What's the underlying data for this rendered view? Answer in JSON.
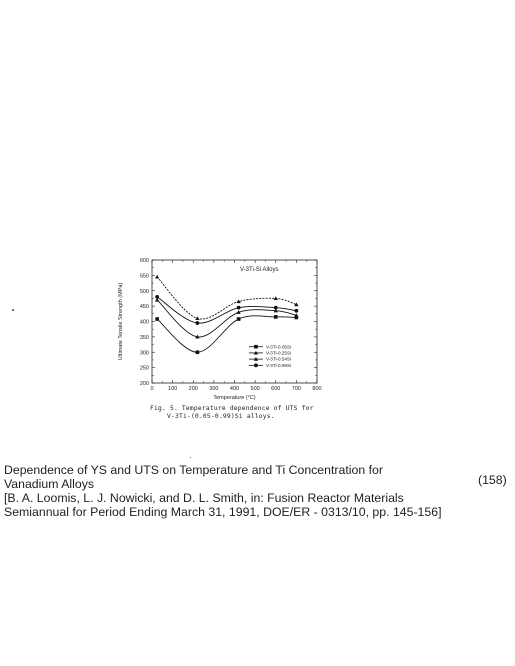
{
  "chart_data": {
    "type": "line",
    "title": "V-3Ti-Si Alloys",
    "xlabel": "Temperature (°C)",
    "ylabel": "Ultimate Tensile Strength (MPa)",
    "xlim": [
      0,
      800
    ],
    "ylim": [
      200,
      600
    ],
    "xticks": [
      "0",
      "100",
      "200",
      "300",
      "400",
      "500",
      "600",
      "700",
      "800"
    ],
    "yticks": [
      "200",
      "250",
      "300",
      "350",
      "400",
      "450",
      "500",
      "550",
      "600"
    ],
    "legend_position": "lower-right",
    "grid": false,
    "series": [
      {
        "name": "V-3Ti-0.05Si",
        "marker": "square",
        "x": [
          25,
          220,
          420,
          600,
          700
        ],
        "values": [
          408,
          300,
          408,
          415,
          413
        ]
      },
      {
        "name": "V-3Ti-0.25Si",
        "marker": "triangle",
        "x": [
          25,
          220,
          420,
          600,
          700
        ],
        "values": [
          470,
          350,
          430,
          435,
          420
        ]
      },
      {
        "name": "V-3Ti-0.54Si",
        "marker": "triangle",
        "x": [
          25,
          220,
          420,
          600,
          700
        ],
        "values": [
          545,
          410,
          465,
          475,
          455
        ]
      },
      {
        "name": "V-3Ti-0.99Si",
        "marker": "circle",
        "x": [
          25,
          220,
          420,
          600,
          700
        ],
        "values": [
          480,
          395,
          445,
          445,
          435
        ]
      }
    ]
  },
  "figure_caption": {
    "line1": "Fig. 5. Temperature dependence of UTS for",
    "line2": "V-3Ti-(0.05-0.99)Si alloys."
  },
  "caption": {
    "line1": "Dependence of YS and UTS on Temperature and Ti Concentration for",
    "line2": "Vanadium Alloys",
    "line3": "[B. A. Loomis, L. J. Nowicki, and D. L. Smith, in: Fusion Reactor Materials",
    "line4": "Semiannual for Period Ending March 31, 1991, DOE/ER - 0313/10, pp. 145-156]"
  },
  "equation_number": "(158)"
}
